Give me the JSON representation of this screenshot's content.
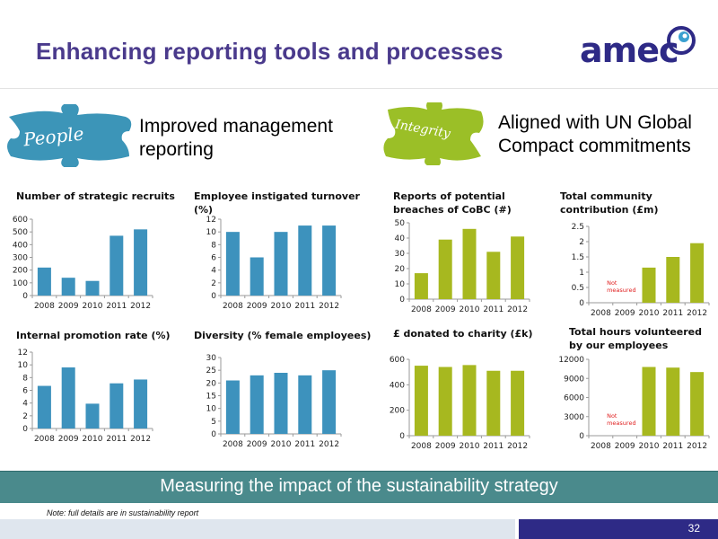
{
  "slide": {
    "title": "Enhancing reporting tools and processes",
    "logo_text": "amec",
    "people_label": "People",
    "people_heading": "Improved management reporting",
    "integrity_label": "Integrity",
    "integrity_heading": "Aligned with UN Global Compact commitments",
    "banner": "Measuring the impact of the sustainability strategy",
    "note": "Note: full details are in sustainability report",
    "page_number": "32"
  },
  "colors": {
    "title": "#4a3a8c",
    "logo": "#2e2a86",
    "people_puzzle": "#3c95b8",
    "integrity_puzzle": "#9bbf27",
    "people_bars": "#3d92bd",
    "integrity_bars": "#a7b81f",
    "banner": "#4a8a8c",
    "footer": "#2e2a86",
    "not_measured": "#e02020"
  },
  "chart_data": [
    {
      "id": "strategic-recruits",
      "type": "bar",
      "title": "Number of strategic recruits",
      "categories": [
        "2008",
        "2009",
        "2010",
        "2011",
        "2012"
      ],
      "values": [
        220,
        140,
        115,
        470,
        520
      ],
      "ylim": [
        0,
        600
      ],
      "yticks": [
        0,
        100,
        200,
        300,
        400,
        500,
        600
      ],
      "color": "#3d92bd"
    },
    {
      "id": "employee-turnover",
      "type": "bar",
      "title": "Employee instigated turnover (%)",
      "categories": [
        "2008",
        "2009",
        "2010",
        "2011",
        "2012"
      ],
      "values": [
        10,
        6,
        10,
        11,
        11
      ],
      "ylim": [
        0,
        12
      ],
      "yticks": [
        0,
        2,
        4,
        6,
        8,
        10,
        12
      ],
      "color": "#3d92bd"
    },
    {
      "id": "internal-promotion",
      "type": "bar",
      "title": "Internal promotion rate (%)",
      "categories": [
        "2008",
        "2009",
        "2010",
        "2011",
        "2012"
      ],
      "values": [
        6.7,
        9.6,
        3.9,
        7.1,
        7.7
      ],
      "ylim": [
        0,
        12
      ],
      "yticks": [
        0,
        2,
        4,
        6,
        8,
        10,
        12
      ],
      "color": "#3d92bd"
    },
    {
      "id": "diversity",
      "type": "bar",
      "title": "Diversity (% female employees)",
      "categories": [
        "2008",
        "2009",
        "2010",
        "2011",
        "2012"
      ],
      "values": [
        21,
        23,
        24,
        23,
        25
      ],
      "ylim": [
        0,
        30
      ],
      "yticks": [
        0,
        5,
        10,
        15,
        20,
        25,
        30
      ],
      "color": "#3d92bd"
    },
    {
      "id": "breaches-cobc",
      "type": "bar",
      "title": "Reports of potential breaches of CoBC (#)",
      "categories": [
        "2008",
        "2009",
        "2010",
        "2011",
        "2012"
      ],
      "values": [
        17,
        39,
        46,
        31,
        41
      ],
      "ylim": [
        0,
        50
      ],
      "yticks": [
        0,
        10,
        20,
        30,
        40,
        50
      ],
      "color": "#a7b81f"
    },
    {
      "id": "community-contribution",
      "type": "bar",
      "title": "Total community contribution (£m)",
      "categories": [
        "2008",
        "2009",
        "2010",
        "2011",
        "2012"
      ],
      "values": [
        null,
        null,
        1.15,
        1.5,
        1.95
      ],
      "ylim": [
        0,
        2.5
      ],
      "yticks": [
        0,
        0.5,
        1,
        1.5,
        2,
        2.5
      ],
      "annotation": "Not measured",
      "color": "#a7b81f"
    },
    {
      "id": "donated-charity",
      "type": "bar",
      "title": "£ donated to charity (£k)",
      "categories": [
        "2008",
        "2009",
        "2010",
        "2011",
        "2012"
      ],
      "values": [
        550,
        540,
        555,
        510,
        510
      ],
      "ylim": [
        0,
        600
      ],
      "yticks": [
        0,
        200,
        400,
        600
      ],
      "color": "#a7b81f"
    },
    {
      "id": "hours-volunteered",
      "type": "bar",
      "title": "Total hours volunteered by our employees",
      "categories": [
        "2008",
        "2009",
        "2010",
        "2011",
        "2012"
      ],
      "values": [
        null,
        null,
        10800,
        10700,
        10000
      ],
      "ylim": [
        0,
        12000
      ],
      "yticks": [
        0,
        3000,
        6000,
        9000,
        12000
      ],
      "annotation": "Not measured",
      "color": "#a7b81f"
    }
  ]
}
